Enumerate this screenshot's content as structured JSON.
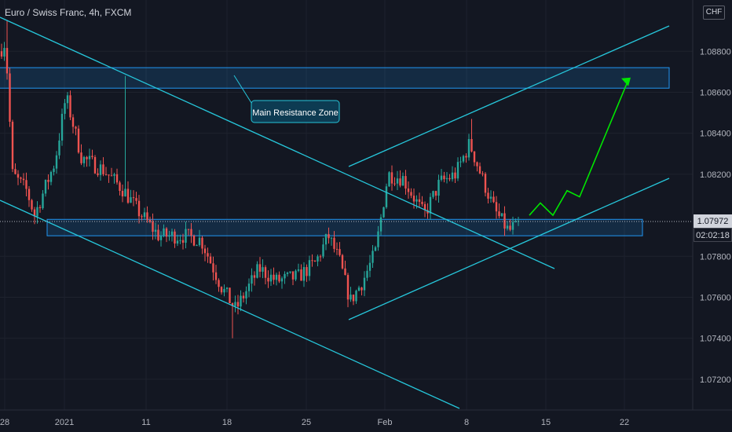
{
  "header": {
    "symbol_title": "Euro / Swiss Franc, 4h, FXCM",
    "currency": "CHF"
  },
  "price_axis": {
    "current_price": "1.07972",
    "countdown": "02:02:18"
  },
  "colors": {
    "background": "#131722",
    "up_candle": "#26a69a",
    "down_candle": "#ef5350",
    "trendline": "#26c6da",
    "zone_border": "#2196f3",
    "projection": "#00e600"
  },
  "annotation": {
    "text": "Main Resistance Zone"
  },
  "chart_data": {
    "type": "candlestick",
    "symbol": "EURCHF",
    "interval": "4h",
    "ylim": [
      1.0705,
      1.0905
    ],
    "y_ticks": [
      "1.08800",
      "1.08600",
      "1.08400",
      "1.08200",
      "1.07800",
      "1.07600",
      "1.07400",
      "1.07200"
    ],
    "x_ticks": [
      "28",
      "2021",
      "11",
      "18",
      "25",
      "Feb",
      "8",
      "15",
      "22"
    ],
    "zones": [
      {
        "label": "Main Resistance Zone",
        "top": 1.0872,
        "bottom": 1.0862
      },
      {
        "label": "",
        "top": 1.0798,
        "bottom": 1.079
      }
    ],
    "key_levels": [
      {
        "label": "Dec 28 high",
        "value": 1.0895
      },
      {
        "label": "Jan 5 high",
        "value": 1.0868
      },
      {
        "label": "Jan 19 low",
        "value": 1.074
      },
      {
        "label": "Jan 29 low",
        "value": 1.0752
      },
      {
        "label": "Feb 8 high",
        "value": 1.0847
      },
      {
        "label": "Feb 11 low",
        "value": 1.0786
      }
    ],
    "last_price": 1.07972,
    "projection": [
      1.08,
      1.0806,
      1.08,
      1.0812,
      1.0809,
      1.0866
    ]
  }
}
